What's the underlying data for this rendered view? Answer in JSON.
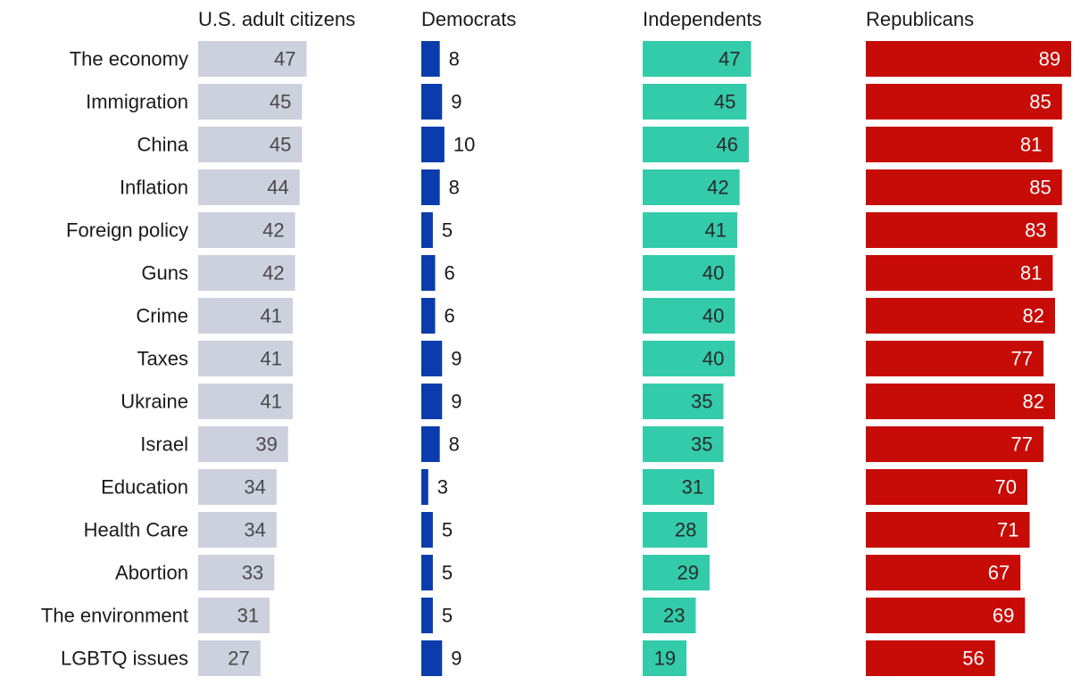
{
  "chart_data": {
    "type": "bar",
    "categories": [
      "The economy",
      "Immigration",
      "China",
      "Inflation",
      "Foreign policy",
      "Guns",
      "Crime",
      "Taxes",
      "Ukraine",
      "Israel",
      "Education",
      "Health Care",
      "Abortion",
      "The environment",
      "LGBTQ issues"
    ],
    "series": [
      {
        "name": "U.S. adult citizens",
        "color": "#cdd1dd",
        "label_color": "#4a4a4a",
        "label_inside": true,
        "values": [
          47,
          45,
          45,
          44,
          42,
          42,
          41,
          41,
          41,
          39,
          34,
          34,
          33,
          31,
          27
        ]
      },
      {
        "name": "Democrats",
        "color": "#0a3cab",
        "label_color": "#1a1a1a",
        "label_inside": false,
        "values": [
          8,
          9,
          10,
          8,
          5,
          6,
          6,
          9,
          9,
          8,
          3,
          5,
          5,
          5,
          9
        ]
      },
      {
        "name": "Independents",
        "color": "#33cbaa",
        "label_color": "#2a2a2a",
        "label_inside": true,
        "values": [
          47,
          45,
          46,
          42,
          41,
          40,
          40,
          40,
          35,
          35,
          31,
          28,
          29,
          23,
          19
        ]
      },
      {
        "name": "Republicans",
        "color": "#c70b07",
        "label_color": "#ffffff",
        "label_inside": true,
        "values": [
          89,
          85,
          81,
          85,
          83,
          81,
          82,
          77,
          82,
          77,
          70,
          71,
          67,
          69,
          56
        ]
      }
    ],
    "title": "",
    "xlabel": "",
    "ylabel": "",
    "xlim": [
      0,
      100
    ],
    "grid": false,
    "legend": "none"
  }
}
